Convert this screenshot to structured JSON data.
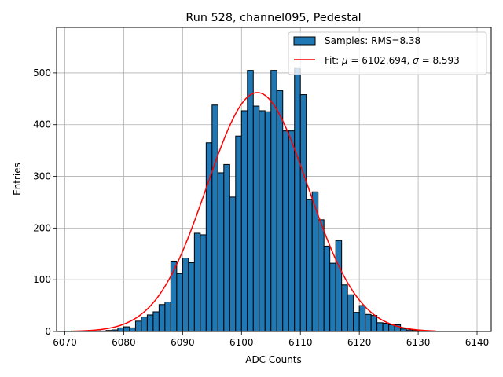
{
  "chart_data": {
    "type": "bar",
    "title": "Run 528, channel095, Pedestal",
    "xlabel": "ADC Counts",
    "ylabel": "Entries",
    "xlim": [
      6068.6,
      6142.4
    ],
    "ylim": [
      0,
      588
    ],
    "xticks": [
      6070,
      6080,
      6090,
      6100,
      6110,
      6120,
      6130,
      6140
    ],
    "yticks": [
      0,
      100,
      200,
      300,
      400,
      500
    ],
    "grid": true,
    "legend_placement": "top-right",
    "bin_width": 1,
    "histogram": {
      "name": "Samples: RMS=8.38",
      "color": "#1f77b4",
      "edge_color": "#000000",
      "bin_left_edges": [
        6071,
        6072,
        6073,
        6074,
        6075,
        6076,
        6077,
        6078,
        6079,
        6080,
        6081,
        6082,
        6083,
        6084,
        6085,
        6086,
        6087,
        6088,
        6089,
        6090,
        6091,
        6092,
        6093,
        6094,
        6095,
        6096,
        6097,
        6098,
        6099,
        6100,
        6101,
        6102,
        6103,
        6104,
        6105,
        6106,
        6107,
        6108,
        6109,
        6110,
        6111,
        6112,
        6113,
        6114,
        6115,
        6116,
        6117,
        6118,
        6119,
        6120,
        6121,
        6122,
        6123,
        6124,
        6125,
        6126,
        6127,
        6128,
        6129,
        6130,
        6131,
        6132
      ],
      "counts": [
        0,
        0,
        1,
        1,
        1,
        1,
        2,
        3,
        7,
        9,
        7,
        20,
        28,
        32,
        38,
        52,
        57,
        136,
        112,
        142,
        133,
        190,
        187,
        365,
        438,
        307,
        323,
        260,
        378,
        427,
        505,
        436,
        427,
        425,
        505,
        466,
        388,
        388,
        510,
        458,
        255,
        270,
        216,
        165,
        132,
        176,
        90,
        71,
        37,
        50,
        33,
        31,
        17,
        16,
        13,
        13,
        5,
        3,
        2,
        1,
        0,
        0
      ]
    },
    "fit": {
      "name": "Fit: $\\mu$ = 6102.694, $\\sigma$ = 8.593",
      "label_text": "Fit: ",
      "mu_symbol": "μ",
      "mu_text": " = 6102.694, ",
      "sigma_symbol": "σ",
      "sigma_text": " = 8.593",
      "color": "#ff0000",
      "mu": 6102.694,
      "sigma": 8.593,
      "amplitude": 462,
      "x_range": [
        6071,
        6133
      ]
    }
  }
}
